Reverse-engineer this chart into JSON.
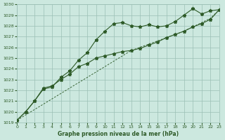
{
  "title": "Graphe pression niveau de la mer (hPa)",
  "bg_color": "#cce8df",
  "grid_color": "#9bbfb5",
  "line_color": "#2d5a27",
  "xlim": [
    0,
    23
  ],
  "ylim": [
    1019,
    1030
  ],
  "xticks": [
    0,
    1,
    2,
    3,
    4,
    5,
    6,
    7,
    8,
    9,
    10,
    11,
    12,
    13,
    14,
    15,
    16,
    17,
    18,
    19,
    20,
    21,
    22,
    23
  ],
  "yticks": [
    1019,
    1020,
    1021,
    1022,
    1023,
    1024,
    1025,
    1026,
    1027,
    1028,
    1029,
    1030
  ],
  "series1": [
    1019.2,
    1020.0,
    1021.0,
    1022.1,
    1022.3,
    1023.2,
    1023.8,
    1024.8,
    1025.5,
    1026.7,
    1027.5,
    1028.2,
    1028.3,
    1028.0,
    1027.9,
    1028.1,
    1027.9,
    1028.0,
    1028.4,
    1029.0,
    1029.6,
    1029.1,
    1029.4,
    1029.5
  ],
  "series2": [
    1019.2,
    1020.0,
    1021.0,
    1022.2,
    1022.4,
    1023.0,
    1023.5,
    1024.2,
    1024.5,
    1025.0,
    1025.2,
    1025.4,
    1025.6,
    1025.7,
    1025.9,
    1026.2,
    1026.5,
    1026.9,
    1027.2,
    1027.5,
    1027.9,
    1028.2,
    1028.6,
    1029.5
  ],
  "series3": [
    1019.2,
    1019.7,
    1020.2,
    1020.7,
    1021.2,
    1021.7,
    1022.2,
    1022.7,
    1023.2,
    1023.7,
    1024.2,
    1024.7,
    1025.2,
    1025.7,
    1026.0,
    1026.3,
    1026.6,
    1026.9,
    1027.2,
    1027.5,
    1027.9,
    1028.3,
    1028.7,
    1029.5
  ],
  "linewidth": 0.8,
  "markersize": 3.5
}
